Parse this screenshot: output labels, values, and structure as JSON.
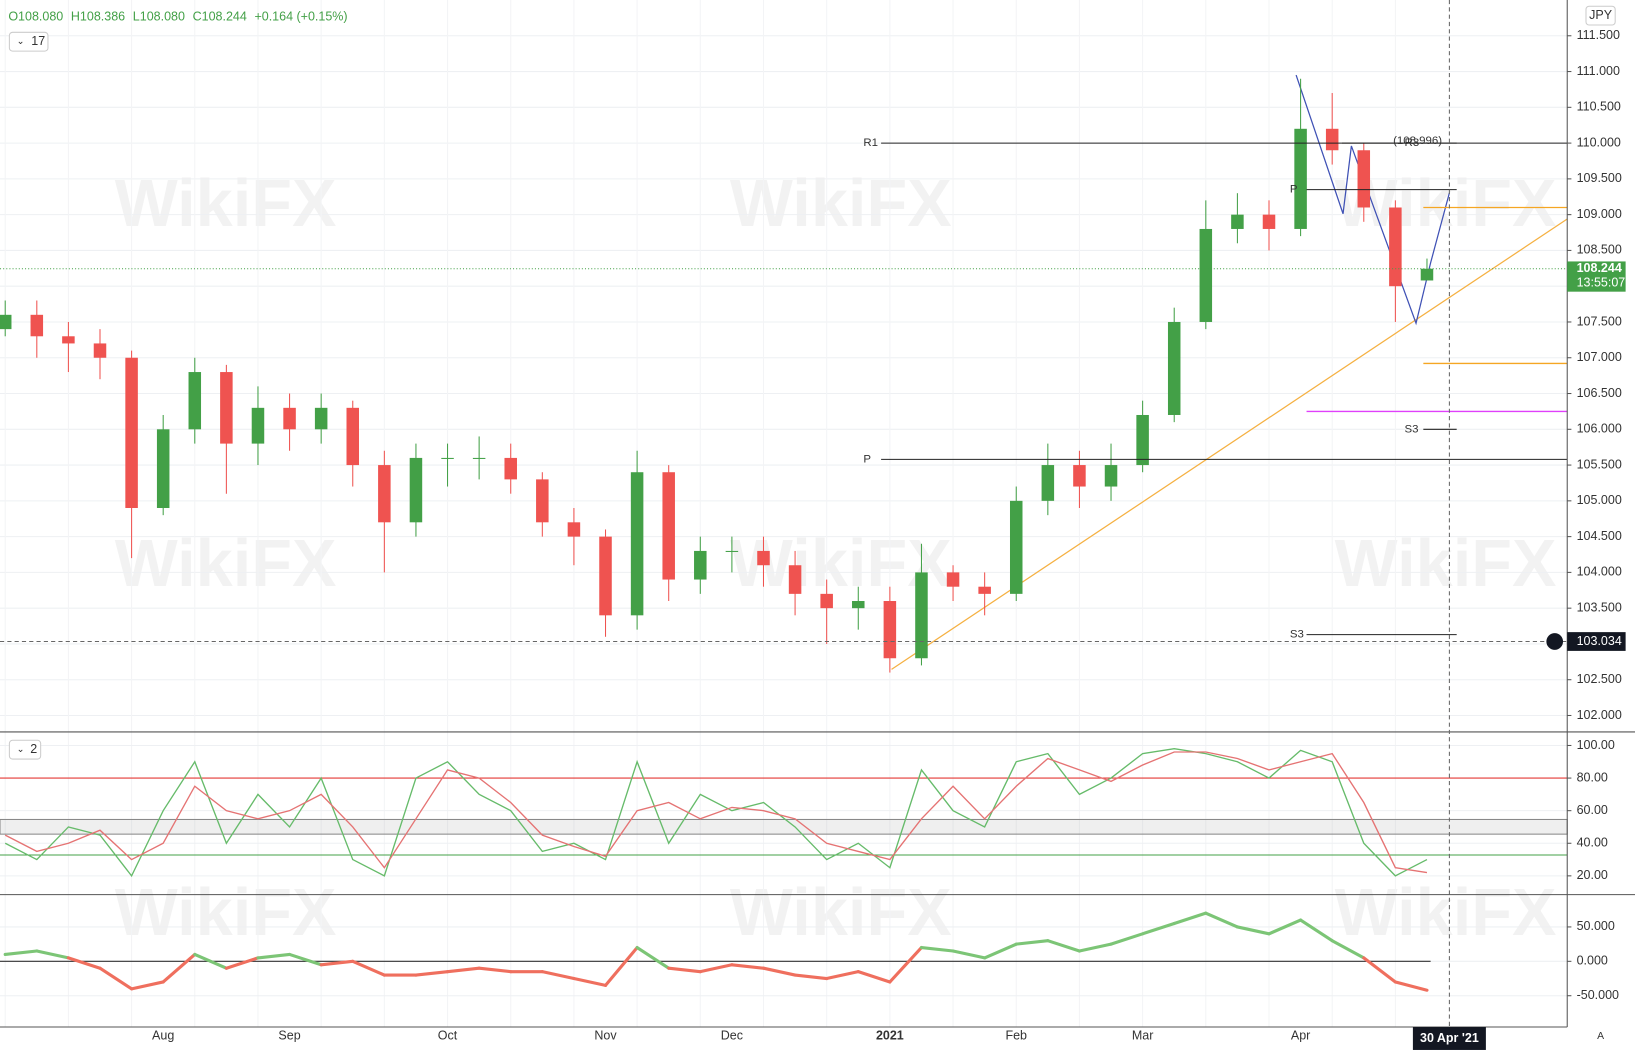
{
  "header": {
    "ohlc": [
      "O108.080",
      "H108.386",
      "L108.080",
      "C108.244"
    ],
    "change": "+0.164 (+0.15%)",
    "interval": "17",
    "currency": "JPY",
    "osc_param": "2",
    "auto": "A",
    "watermark": "WikiFX"
  },
  "chart_data": [
    {
      "type": "candlestick",
      "categories": [
        null,
        null,
        null,
        null,
        null,
        "Aug",
        null,
        null,
        null,
        "Sep",
        null,
        null,
        null,
        null,
        "Oct",
        null,
        null,
        null,
        null,
        "Nov",
        null,
        null,
        null,
        "Dec",
        null,
        null,
        null,
        null,
        "2021",
        null,
        null,
        null,
        "Feb",
        null,
        null,
        null,
        "Mar",
        null,
        null,
        null,
        null,
        "Apr",
        null,
        null,
        null,
        null
      ],
      "open": [
        107.4,
        107.6,
        107.3,
        107.2,
        107.0,
        104.9,
        106.0,
        106.8,
        105.8,
        106.3,
        106.0,
        106.3,
        105.5,
        104.7,
        105.6,
        105.6,
        105.6,
        105.3,
        104.7,
        104.5,
        103.4,
        105.4,
        103.9,
        104.3,
        104.3,
        104.1,
        103.7,
        103.5,
        103.6,
        102.8,
        104.0,
        103.8,
        103.7,
        105.0,
        105.5,
        105.2,
        105.5,
        106.2,
        107.5,
        108.8,
        109.0,
        108.8,
        110.2,
        109.9,
        109.1,
        108.08
      ],
      "high": [
        107.8,
        107.8,
        107.5,
        107.4,
        107.1,
        106.2,
        107.0,
        106.9,
        106.6,
        106.5,
        106.5,
        106.4,
        105.7,
        105.8,
        105.8,
        105.9,
        105.8,
        105.4,
        104.9,
        104.6,
        105.7,
        105.5,
        104.5,
        104.5,
        104.5,
        104.3,
        103.9,
        103.8,
        103.8,
        104.4,
        104.1,
        104.0,
        105.2,
        105.8,
        105.7,
        105.8,
        106.4,
        107.7,
        109.2,
        109.3,
        109.2,
        110.9,
        110.7,
        110.0,
        109.2,
        108.386
      ],
      "low": [
        107.3,
        107.0,
        106.8,
        106.7,
        104.2,
        104.8,
        105.8,
        105.1,
        105.5,
        105.7,
        105.8,
        105.2,
        104.0,
        104.5,
        105.2,
        105.3,
        105.1,
        104.5,
        104.1,
        103.1,
        103.2,
        103.6,
        103.7,
        104.0,
        103.8,
        103.4,
        103.0,
        103.2,
        102.6,
        102.7,
        103.6,
        103.4,
        103.6,
        104.8,
        104.9,
        105.0,
        105.4,
        106.1,
        107.4,
        108.6,
        108.5,
        108.7,
        109.7,
        108.9,
        107.5,
        108.08
      ],
      "close": [
        107.6,
        107.3,
        107.2,
        107.0,
        104.9,
        106.0,
        106.8,
        105.8,
        106.3,
        106.0,
        106.3,
        105.5,
        104.7,
        105.6,
        105.6,
        105.6,
        105.3,
        104.7,
        104.5,
        103.4,
        105.4,
        103.9,
        104.3,
        104.3,
        104.1,
        103.7,
        103.5,
        103.6,
        102.8,
        104.0,
        103.8,
        103.7,
        105.0,
        105.5,
        105.2,
        105.5,
        106.2,
        107.5,
        108.8,
        109.0,
        108.8,
        110.2,
        109.9,
        109.1,
        108.0,
        108.244
      ],
      "up_color": "#43a047",
      "down_color": "#ef5350",
      "ylim": [
        101.77,
        112.0
      ],
      "yticks": [
        {
          "value": 102,
          "label": "102.000"
        },
        {
          "value": 102.5,
          "label": "102.500"
        },
        {
          "value": 103,
          "label": "103.000"
        },
        {
          "value": 103.5,
          "label": "103.500"
        },
        {
          "value": 104,
          "label": "104.000"
        },
        {
          "value": 104.5,
          "label": "104.500"
        },
        {
          "value": 105,
          "label": "105.000"
        },
        {
          "value": 105.5,
          "label": "105.500"
        },
        {
          "value": 106,
          "label": "106.000"
        },
        {
          "value": 106.5,
          "label": "106.500"
        },
        {
          "value": 107,
          "label": "107.000"
        },
        {
          "value": 107.5,
          "label": "107.500"
        },
        {
          "value": 108,
          "label": "108.000"
        },
        {
          "value": 108.5,
          "label": "108.500"
        },
        {
          "value": 109,
          "label": "109.000"
        },
        {
          "value": 109.5,
          "label": "109.500"
        },
        {
          "value": 110,
          "label": "110.000"
        },
        {
          "value": 110.5,
          "label": "110.500"
        },
        {
          "value": 111,
          "label": "111.000"
        },
        {
          "value": 111.5,
          "label": "111.500"
        }
      ],
      "grid": true,
      "last_price": {
        "value": 108.244,
        "label": "108.244"
      },
      "countdown": "13:55:07",
      "crosshair": {
        "value": 103.034,
        "label": "103.034"
      },
      "cursor_date": "30 Apr '21",
      "levels": [
        {
          "name": "R1",
          "value": 110.0
        },
        {
          "name": "P",
          "value": 105.58
        },
        {
          "name": "P",
          "value": 109.35
        },
        {
          "name": "R3",
          "value": 110.0
        },
        {
          "name": "S3",
          "value": 106.0
        },
        {
          "name": "S3",
          "value": 103.13
        }
      ],
      "level_lines": [
        {
          "value": 109.1,
          "color": "#f5a623"
        },
        {
          "value": 106.92,
          "color": "#f5a623"
        },
        {
          "value": 106.25,
          "color": "#e040fb"
        }
      ],
      "annotation": "(108.996)"
    },
    {
      "type": "line",
      "series": [
        {
          "color": "#66bb6a",
          "values": [
            40,
            30,
            50,
            45,
            20,
            60,
            90,
            40,
            70,
            50,
            80,
            30,
            20,
            80,
            90,
            70,
            60,
            35,
            40,
            30,
            90,
            40,
            70,
            60,
            65,
            50,
            30,
            40,
            25,
            85,
            60,
            50,
            90,
            95,
            70,
            80,
            95,
            98,
            95,
            90,
            80,
            97,
            90,
            40,
            20,
            30
          ]
        },
        {
          "color": "#e57373",
          "values": [
            45,
            35,
            40,
            48,
            30,
            40,
            75,
            60,
            55,
            60,
            70,
            50,
            25,
            55,
            85,
            80,
            65,
            45,
            38,
            32,
            60,
            65,
            55,
            62,
            60,
            55,
            40,
            35,
            30,
            55,
            75,
            55,
            75,
            92,
            85,
            78,
            88,
            96,
            96,
            92,
            85,
            90,
            95,
            65,
            25,
            22
          ]
        }
      ],
      "ylim": [
        8.5,
        108.3
      ],
      "yticks": [
        {
          "value": 20,
          "label": "20.00"
        },
        {
          "value": 40,
          "label": "40.00"
        },
        {
          "value": 60,
          "label": "60.00"
        },
        {
          "value": 80,
          "label": "80.00"
        },
        {
          "value": 100,
          "label": "100.00"
        }
      ],
      "hlines": [
        {
          "value": 80,
          "color": "#e53935"
        },
        {
          "value": 32.8,
          "color": "#43a047"
        }
      ],
      "band": [
        45.6,
        54.6
      ]
    },
    {
      "type": "momentum",
      "values": [
        10,
        15,
        5,
        -10,
        -40,
        -30,
        10,
        -10,
        5,
        10,
        -5,
        0,
        -20,
        -20,
        -15,
        -10,
        -15,
        -15,
        -25,
        -35,
        20,
        -10,
        -15,
        -5,
        -10,
        -20,
        -25,
        -15,
        -30,
        20,
        15,
        5,
        25,
        30,
        15,
        25,
        40,
        55,
        70,
        50,
        40,
        60,
        30,
        5,
        -30,
        -42
      ],
      "pos_color": "#7cc576",
      "neg_color": "#ef6f5e",
      "ylim": [
        -95.5,
        97
      ],
      "yticks": [
        {
          "value": -50,
          "label": "-50.000"
        },
        {
          "value": 0,
          "label": "0.000"
        },
        {
          "value": 50,
          "label": "50.000"
        }
      ]
    }
  ]
}
